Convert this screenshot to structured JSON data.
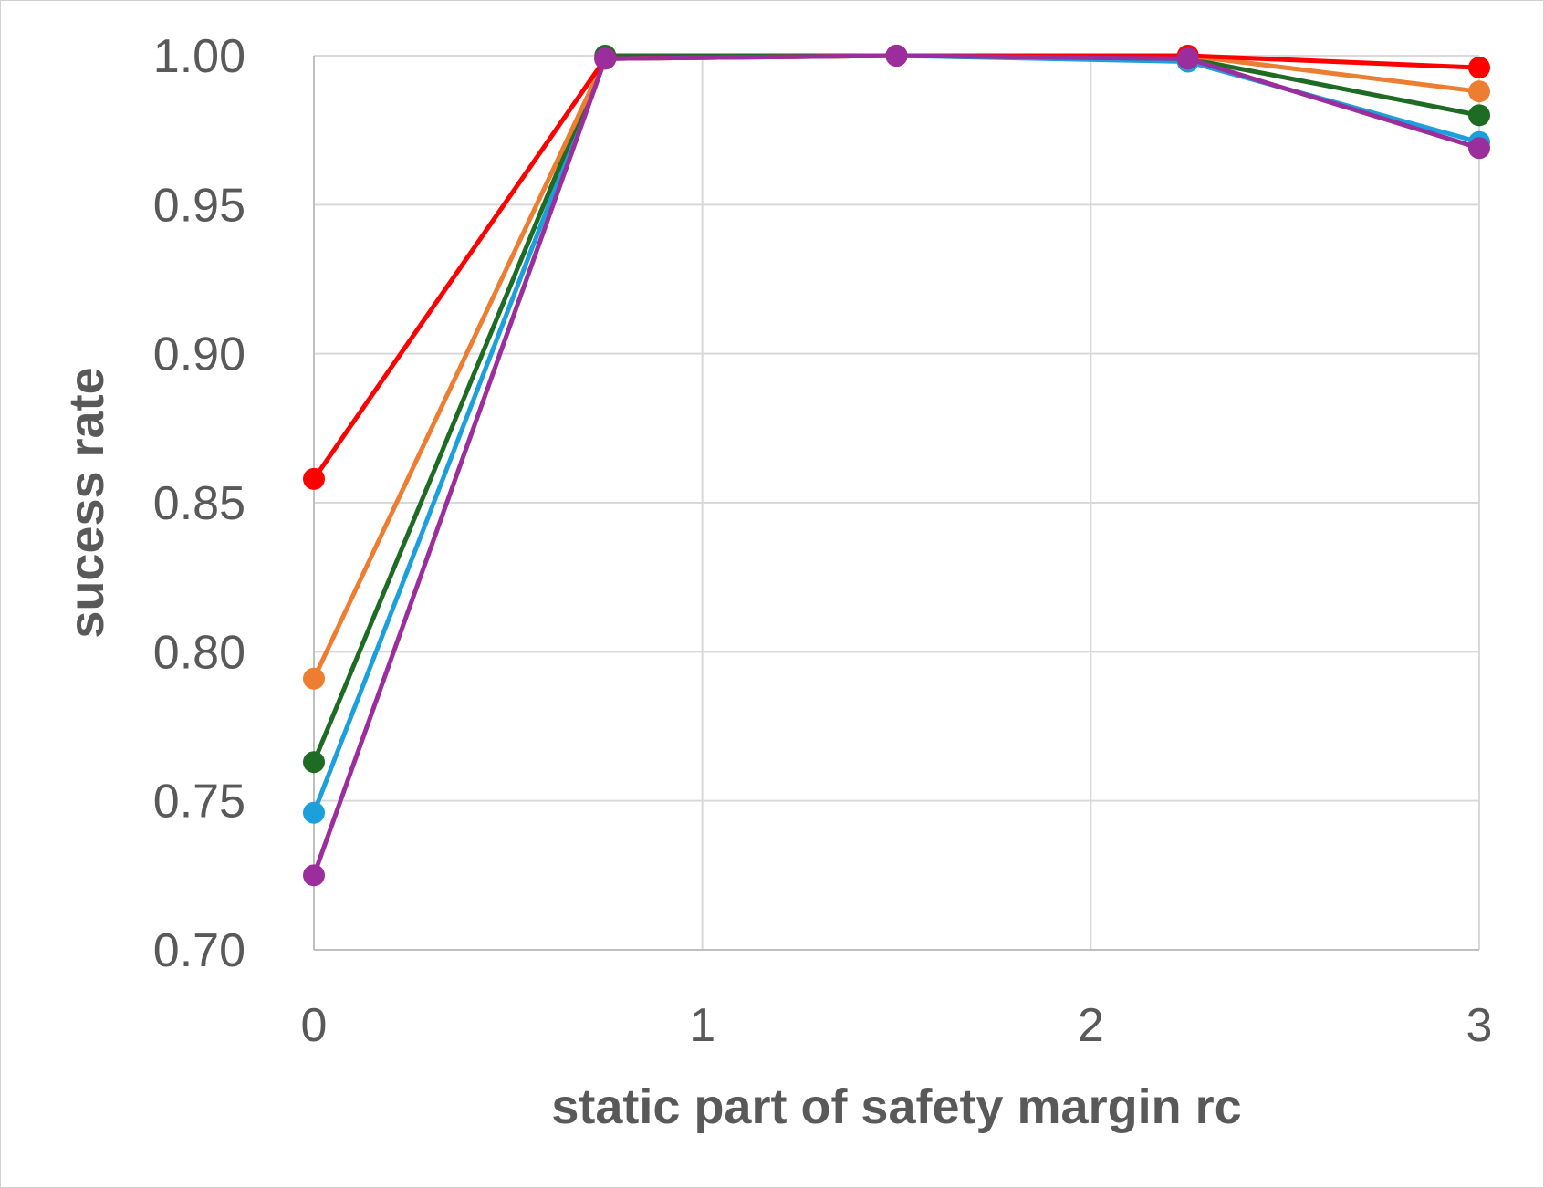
{
  "chart_data": {
    "type": "line",
    "xlabel": "static part of safety margin rc",
    "ylabel": "sucess rate",
    "xlim": [
      0,
      3
    ],
    "ylim": [
      0.7,
      1.0
    ],
    "x_ticks": [
      "0",
      "1",
      "2",
      "3"
    ],
    "y_ticks": [
      "0.70",
      "0.75",
      "0.80",
      "0.85",
      "0.90",
      "0.95",
      "1.00"
    ],
    "x": [
      0,
      0.75,
      1.5,
      2.25,
      3
    ],
    "grid": true,
    "legend": "none",
    "series": [
      {
        "color": "#1CA0DC",
        "values": [
          0.746,
          0.999,
          1.0,
          0.998,
          0.971
        ]
      },
      {
        "color": "#1E6B24",
        "values": [
          0.763,
          1.0,
          1.0,
          0.999,
          0.98
        ]
      },
      {
        "color": "#ED7D31",
        "values": [
          0.791,
          0.999,
          1.0,
          1.0,
          0.988
        ]
      },
      {
        "color": "#FF0000",
        "values": [
          0.858,
          0.999,
          1.0,
          1.0,
          0.996
        ]
      },
      {
        "color": "#9B2E9C",
        "values": [
          0.725,
          0.999,
          1.0,
          0.999,
          0.969
        ]
      }
    ]
  }
}
